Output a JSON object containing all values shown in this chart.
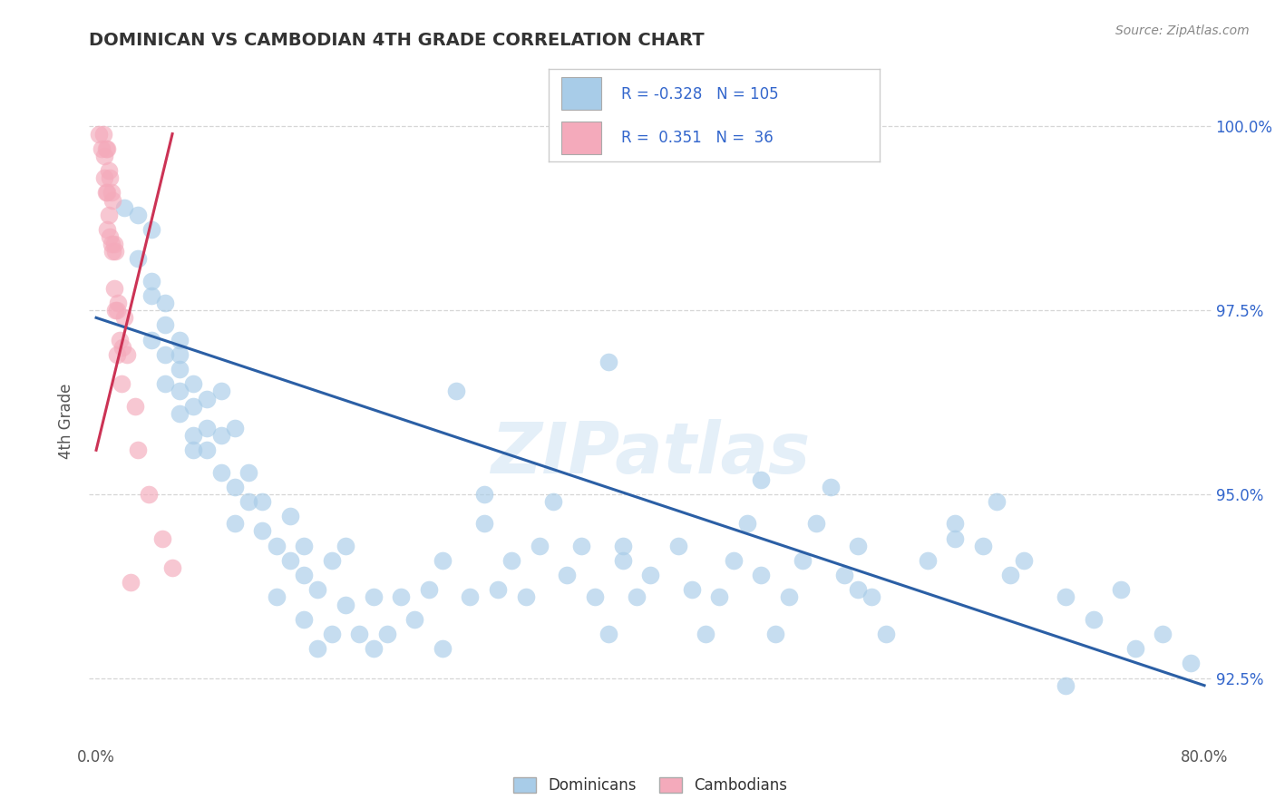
{
  "title": "DOMINICAN VS CAMBODIAN 4TH GRADE CORRELATION CHART",
  "source": "Source: ZipAtlas.com",
  "ylabel": "4th Grade",
  "xlim": [
    -0.005,
    0.805
  ],
  "ylim": [
    0.916,
    1.004
  ],
  "xticks": [
    0.0,
    0.8
  ],
  "xticklabels": [
    "0.0%",
    "80.0%"
  ],
  "yticks": [
    0.925,
    0.95,
    0.975,
    1.0
  ],
  "yticklabels": [
    "92.5%",
    "95.0%",
    "97.5%",
    "100.0%"
  ],
  "blue_color": "#A8CCE8",
  "pink_color": "#F4AABB",
  "blue_line_color": "#2B5FA5",
  "pink_line_color": "#CC3355",
  "watermark": "ZIPatlas",
  "blue_scatter_x": [
    0.02,
    0.03,
    0.03,
    0.04,
    0.04,
    0.04,
    0.04,
    0.05,
    0.05,
    0.05,
    0.05,
    0.06,
    0.06,
    0.06,
    0.06,
    0.06,
    0.07,
    0.07,
    0.07,
    0.07,
    0.08,
    0.08,
    0.08,
    0.09,
    0.09,
    0.09,
    0.1,
    0.1,
    0.1,
    0.11,
    0.11,
    0.12,
    0.12,
    0.13,
    0.13,
    0.14,
    0.14,
    0.15,
    0.15,
    0.15,
    0.16,
    0.16,
    0.17,
    0.17,
    0.18,
    0.18,
    0.19,
    0.2,
    0.2,
    0.21,
    0.22,
    0.23,
    0.24,
    0.25,
    0.25,
    0.26,
    0.27,
    0.28,
    0.29,
    0.3,
    0.31,
    0.32,
    0.33,
    0.34,
    0.35,
    0.36,
    0.37,
    0.38,
    0.39,
    0.4,
    0.42,
    0.43,
    0.44,
    0.45,
    0.46,
    0.47,
    0.48,
    0.49,
    0.5,
    0.51,
    0.52,
    0.53,
    0.54,
    0.55,
    0.56,
    0.57,
    0.6,
    0.62,
    0.64,
    0.65,
    0.66,
    0.67,
    0.7,
    0.72,
    0.74,
    0.75,
    0.77,
    0.79,
    0.28,
    0.38,
    0.48,
    0.55,
    0.62,
    0.7,
    0.37
  ],
  "blue_scatter_y": [
    0.989,
    0.982,
    0.988,
    0.977,
    0.979,
    0.971,
    0.986,
    0.973,
    0.969,
    0.976,
    0.965,
    0.967,
    0.971,
    0.961,
    0.969,
    0.964,
    0.962,
    0.965,
    0.956,
    0.958,
    0.959,
    0.956,
    0.963,
    0.953,
    0.958,
    0.964,
    0.951,
    0.946,
    0.959,
    0.949,
    0.953,
    0.945,
    0.949,
    0.943,
    0.936,
    0.941,
    0.947,
    0.939,
    0.943,
    0.933,
    0.937,
    0.929,
    0.931,
    0.941,
    0.935,
    0.943,
    0.931,
    0.929,
    0.936,
    0.931,
    0.936,
    0.933,
    0.937,
    0.929,
    0.941,
    0.964,
    0.936,
    0.946,
    0.937,
    0.941,
    0.936,
    0.943,
    0.949,
    0.939,
    0.943,
    0.936,
    0.931,
    0.941,
    0.936,
    0.939,
    0.943,
    0.937,
    0.931,
    0.936,
    0.941,
    0.946,
    0.939,
    0.931,
    0.936,
    0.941,
    0.946,
    0.951,
    0.939,
    0.943,
    0.936,
    0.931,
    0.941,
    0.946,
    0.943,
    0.949,
    0.939,
    0.941,
    0.936,
    0.933,
    0.937,
    0.929,
    0.931,
    0.927,
    0.95,
    0.943,
    0.952,
    0.937,
    0.944,
    0.924,
    0.968
  ],
  "pink_scatter_x": [
    0.002,
    0.004,
    0.005,
    0.006,
    0.006,
    0.007,
    0.007,
    0.008,
    0.008,
    0.008,
    0.009,
    0.009,
    0.01,
    0.01,
    0.011,
    0.011,
    0.012,
    0.012,
    0.013,
    0.013,
    0.014,
    0.014,
    0.015,
    0.015,
    0.016,
    0.017,
    0.018,
    0.019,
    0.02,
    0.022,
    0.025,
    0.03,
    0.038,
    0.048,
    0.055,
    0.028
  ],
  "pink_scatter_y": [
    0.999,
    0.997,
    0.999,
    0.996,
    0.993,
    0.997,
    0.991,
    0.997,
    0.991,
    0.986,
    0.994,
    0.988,
    0.993,
    0.985,
    0.991,
    0.984,
    0.99,
    0.983,
    0.984,
    0.978,
    0.983,
    0.975,
    0.975,
    0.969,
    0.976,
    0.971,
    0.965,
    0.97,
    0.974,
    0.969,
    0.938,
    0.956,
    0.95,
    0.944,
    0.94,
    0.962
  ],
  "blue_trendline_x": [
    0.0,
    0.8
  ],
  "blue_trendline_y": [
    0.974,
    0.924
  ],
  "pink_trendline_x": [
    0.0,
    0.055
  ],
  "pink_trendline_y": [
    0.956,
    0.999
  ]
}
